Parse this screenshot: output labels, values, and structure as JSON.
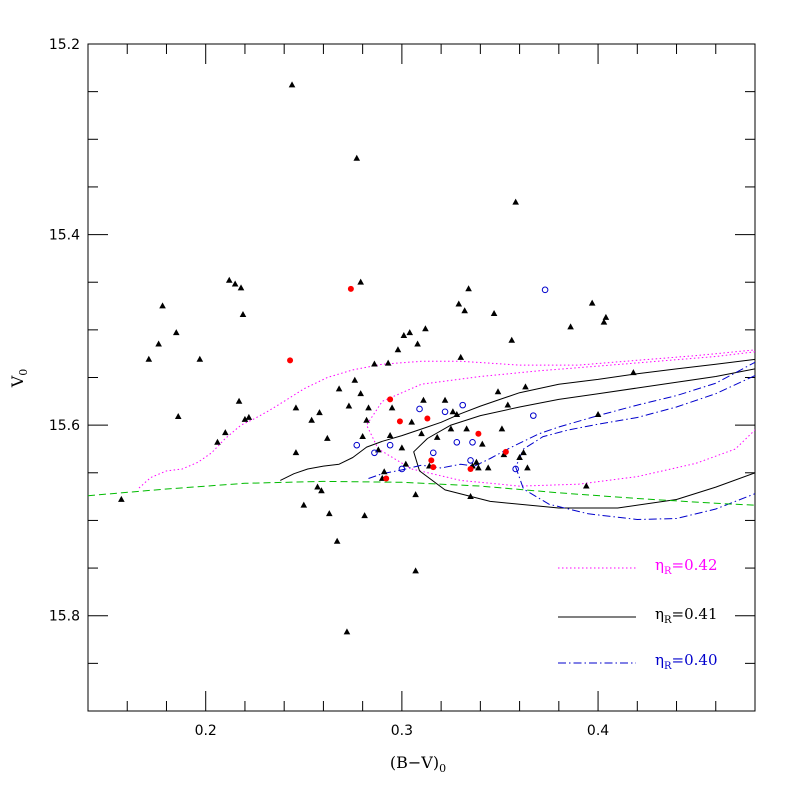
{
  "chart_data": {
    "type": "scatter",
    "title": "",
    "xlabel": "(B−V)",
    "xlabel_sub": "0",
    "ylabel": "V",
    "ylabel_sub": "0",
    "xlim": [
      0.14,
      0.48
    ],
    "ylim": [
      15.9,
      15.2
    ],
    "y_inverted": true,
    "grid": false,
    "x_ticks": [
      0.2,
      0.3,
      0.4
    ],
    "x_tick_labels": [
      "0.2",
      "0.3",
      "0.4"
    ],
    "y_ticks": [
      15.2,
      15.4,
      15.6,
      15.8
    ],
    "y_tick_labels": [
      "15.2",
      "15.4",
      "15.6",
      "15.8"
    ],
    "colors": {
      "frame": "#000000",
      "triangle": "#000000",
      "filled_circle": "#ff0000",
      "open_circle": "#0000cc",
      "tr042": "#ff00ff",
      "tr041": "#000000",
      "tr040": "#0000cc",
      "dashed": "#00bb00"
    },
    "triangles": [
      [
        0.157,
        15.678
      ],
      [
        0.171,
        15.531
      ],
      [
        0.176,
        15.515
      ],
      [
        0.178,
        15.475
      ],
      [
        0.185,
        15.503
      ],
      [
        0.186,
        15.591
      ],
      [
        0.197,
        15.531
      ],
      [
        0.206,
        15.618
      ],
      [
        0.21,
        15.608
      ],
      [
        0.212,
        15.448
      ],
      [
        0.215,
        15.452
      ],
      [
        0.217,
        15.575
      ],
      [
        0.218,
        15.456
      ],
      [
        0.219,
        15.484
      ],
      [
        0.22,
        15.594
      ],
      [
        0.222,
        15.592
      ],
      [
        0.244,
        15.243
      ],
      [
        0.246,
        15.629
      ],
      [
        0.246,
        15.582
      ],
      [
        0.25,
        15.684
      ],
      [
        0.254,
        15.595
      ],
      [
        0.257,
        15.665
      ],
      [
        0.258,
        15.587
      ],
      [
        0.259,
        15.669
      ],
      [
        0.262,
        15.614
      ],
      [
        0.263,
        15.693
      ],
      [
        0.267,
        15.722
      ],
      [
        0.268,
        15.562
      ],
      [
        0.272,
        15.817
      ],
      [
        0.273,
        15.58
      ],
      [
        0.276,
        15.553
      ],
      [
        0.277,
        15.32
      ],
      [
        0.279,
        15.45
      ],
      [
        0.279,
        15.567
      ],
      [
        0.28,
        15.612
      ],
      [
        0.281,
        15.695
      ],
      [
        0.282,
        15.595
      ],
      [
        0.283,
        15.582
      ],
      [
        0.286,
        15.536
      ],
      [
        0.288,
        15.626
      ],
      [
        0.29,
        15.656
      ],
      [
        0.291,
        15.649
      ],
      [
        0.293,
        15.535
      ],
      [
        0.294,
        15.611
      ],
      [
        0.295,
        15.582
      ],
      [
        0.298,
        15.521
      ],
      [
        0.3,
        15.624
      ],
      [
        0.301,
        15.506
      ],
      [
        0.302,
        15.641
      ],
      [
        0.304,
        15.503
      ],
      [
        0.305,
        15.597
      ],
      [
        0.307,
        15.673
      ],
      [
        0.307,
        15.753
      ],
      [
        0.308,
        15.515
      ],
      [
        0.31,
        15.609
      ],
      [
        0.311,
        15.574
      ],
      [
        0.312,
        15.499
      ],
      [
        0.314,
        15.643
      ],
      [
        0.318,
        15.613
      ],
      [
        0.322,
        15.574
      ],
      [
        0.325,
        15.604
      ],
      [
        0.326,
        15.586
      ],
      [
        0.328,
        15.589
      ],
      [
        0.329,
        15.473
      ],
      [
        0.33,
        15.529
      ],
      [
        0.332,
        15.48
      ],
      [
        0.333,
        15.604
      ],
      [
        0.334,
        15.457
      ],
      [
        0.335,
        15.675
      ],
      [
        0.336,
        15.643
      ],
      [
        0.338,
        15.639
      ],
      [
        0.339,
        15.645
      ],
      [
        0.341,
        15.62
      ],
      [
        0.344,
        15.645
      ],
      [
        0.347,
        15.483
      ],
      [
        0.349,
        15.565
      ],
      [
        0.351,
        15.604
      ],
      [
        0.352,
        15.631
      ],
      [
        0.354,
        15.579
      ],
      [
        0.356,
        15.511
      ],
      [
        0.358,
        15.366
      ],
      [
        0.36,
        15.634
      ],
      [
        0.362,
        15.629
      ],
      [
        0.363,
        15.56
      ],
      [
        0.364,
        15.645
      ],
      [
        0.386,
        15.497
      ],
      [
        0.394,
        15.664
      ],
      [
        0.397,
        15.472
      ],
      [
        0.4,
        15.589
      ],
      [
        0.403,
        15.492
      ],
      [
        0.404,
        15.487
      ],
      [
        0.418,
        15.545
      ]
    ],
    "filled_circles": [
      [
        0.243,
        15.532
      ],
      [
        0.274,
        15.457
      ],
      [
        0.292,
        15.656
      ],
      [
        0.294,
        15.573
      ],
      [
        0.299,
        15.596
      ],
      [
        0.313,
        15.593
      ],
      [
        0.315,
        15.637
      ],
      [
        0.316,
        15.644
      ],
      [
        0.335,
        15.646
      ],
      [
        0.339,
        15.609
      ],
      [
        0.353,
        15.628
      ]
    ],
    "open_circles": [
      [
        0.277,
        15.621
      ],
      [
        0.286,
        15.629
      ],
      [
        0.294,
        15.621
      ],
      [
        0.3,
        15.646
      ],
      [
        0.309,
        15.583
      ],
      [
        0.316,
        15.629
      ],
      [
        0.322,
        15.586
      ],
      [
        0.328,
        15.618
      ],
      [
        0.331,
        15.579
      ],
      [
        0.335,
        15.637
      ],
      [
        0.336,
        15.618
      ],
      [
        0.358,
        15.646
      ],
      [
        0.367,
        15.59
      ],
      [
        0.373,
        15.458
      ]
    ],
    "series": [
      {
        "name": "ηR=0.42",
        "style": "dotted",
        "points": [
          [
            0.166,
            15.666
          ],
          [
            0.172,
            15.655
          ],
          [
            0.18,
            15.648
          ],
          [
            0.188,
            15.646
          ],
          [
            0.196,
            15.639
          ],
          [
            0.203,
            15.629
          ],
          [
            0.21,
            15.614
          ],
          [
            0.218,
            15.6
          ],
          [
            0.225,
            15.593
          ],
          [
            0.232,
            15.585
          ],
          [
            0.24,
            15.575
          ],
          [
            0.25,
            15.562
          ],
          [
            0.262,
            15.55
          ],
          [
            0.275,
            15.542
          ],
          [
            0.29,
            15.536
          ],
          [
            0.31,
            15.533
          ],
          [
            0.33,
            15.533
          ],
          [
            0.36,
            15.537
          ],
          [
            0.39,
            15.537
          ],
          [
            0.42,
            15.532
          ],
          [
            0.45,
            15.527
          ],
          [
            0.48,
            15.521
          ]
        ]
      },
      {
        "name": "ηR=0.42-loop",
        "style": "dotted",
        "points": [
          [
            0.48,
            15.523
          ],
          [
            0.46,
            15.528
          ],
          [
            0.43,
            15.533
          ],
          [
            0.4,
            15.538
          ],
          [
            0.37,
            15.543
          ],
          [
            0.34,
            15.549
          ],
          [
            0.31,
            15.557
          ],
          [
            0.29,
            15.575
          ],
          [
            0.282,
            15.6
          ],
          [
            0.288,
            15.625
          ],
          [
            0.305,
            15.646
          ],
          [
            0.33,
            15.658
          ],
          [
            0.36,
            15.664
          ],
          [
            0.39,
            15.662
          ],
          [
            0.42,
            15.654
          ],
          [
            0.45,
            15.64
          ],
          [
            0.47,
            15.625
          ],
          [
            0.48,
            15.605
          ]
        ]
      },
      {
        "name": "ηR=0.41",
        "style": "solid",
        "points": [
          [
            0.238,
            15.658
          ],
          [
            0.245,
            15.651
          ],
          [
            0.252,
            15.646
          ],
          [
            0.26,
            15.643
          ],
          [
            0.268,
            15.641
          ],
          [
            0.275,
            15.634
          ],
          [
            0.282,
            15.623
          ],
          [
            0.29,
            15.617
          ],
          [
            0.3,
            15.611
          ],
          [
            0.31,
            15.604
          ],
          [
            0.32,
            15.597
          ],
          [
            0.33,
            15.588
          ],
          [
            0.34,
            15.58
          ],
          [
            0.35,
            15.573
          ],
          [
            0.36,
            15.566
          ],
          [
            0.38,
            15.557
          ],
          [
            0.4,
            15.552
          ],
          [
            0.42,
            15.546
          ],
          [
            0.44,
            15.541
          ],
          [
            0.46,
            15.536
          ],
          [
            0.48,
            15.531
          ]
        ]
      },
      {
        "name": "ηR=0.41-loop",
        "style": "solid",
        "points": [
          [
            0.48,
            15.541
          ],
          [
            0.46,
            15.549
          ],
          [
            0.44,
            15.555
          ],
          [
            0.42,
            15.561
          ],
          [
            0.4,
            15.567
          ],
          [
            0.38,
            15.573
          ],
          [
            0.36,
            15.581
          ],
          [
            0.34,
            15.59
          ],
          [
            0.325,
            15.6
          ],
          [
            0.313,
            15.614
          ],
          [
            0.306,
            15.628
          ],
          [
            0.309,
            15.648
          ],
          [
            0.322,
            15.668
          ],
          [
            0.345,
            15.68
          ],
          [
            0.38,
            15.687
          ],
          [
            0.41,
            15.687
          ],
          [
            0.44,
            15.678
          ],
          [
            0.46,
            15.665
          ],
          [
            0.48,
            15.65
          ]
        ]
      },
      {
        "name": "ηR=0.40",
        "style": "dashdot",
        "points": [
          [
            0.283,
            15.656
          ],
          [
            0.29,
            15.651
          ],
          [
            0.3,
            15.647
          ],
          [
            0.31,
            15.642
          ],
          [
            0.32,
            15.645
          ],
          [
            0.33,
            15.641
          ],
          [
            0.337,
            15.643
          ],
          [
            0.345,
            15.635
          ],
          [
            0.355,
            15.624
          ],
          [
            0.37,
            15.609
          ],
          [
            0.38,
            15.602
          ],
          [
            0.39,
            15.596
          ],
          [
            0.4,
            15.59
          ],
          [
            0.42,
            15.579
          ],
          [
            0.44,
            15.569
          ],
          [
            0.46,
            15.556
          ],
          [
            0.48,
            15.534
          ]
        ]
      },
      {
        "name": "ηR=0.40-loop",
        "style": "dashdot",
        "points": [
          [
            0.48,
            15.548
          ],
          [
            0.46,
            15.567
          ],
          [
            0.44,
            15.581
          ],
          [
            0.42,
            15.592
          ],
          [
            0.4,
            15.599
          ],
          [
            0.385,
            15.605
          ],
          [
            0.372,
            15.612
          ],
          [
            0.362,
            15.625
          ],
          [
            0.358,
            15.644
          ],
          [
            0.362,
            15.667
          ],
          [
            0.375,
            15.683
          ],
          [
            0.395,
            15.693
          ],
          [
            0.42,
            15.699
          ],
          [
            0.44,
            15.698
          ],
          [
            0.46,
            15.688
          ],
          [
            0.48,
            15.672
          ]
        ]
      },
      {
        "name": "dashed",
        "style": "dashed",
        "points": [
          [
            0.14,
            15.674
          ],
          [
            0.18,
            15.667
          ],
          [
            0.22,
            15.661
          ],
          [
            0.26,
            15.659
          ],
          [
            0.3,
            15.66
          ],
          [
            0.34,
            15.664
          ],
          [
            0.38,
            15.671
          ],
          [
            0.42,
            15.677
          ],
          [
            0.46,
            15.682
          ],
          [
            0.48,
            15.684
          ]
        ]
      }
    ],
    "legend": {
      "placement": "bottom-right",
      "entries": [
        {
          "label_main": "η",
          "label_sub": "R",
          "label_value": "=0.42",
          "style": "dotted",
          "color": "#ff00ff"
        },
        {
          "label_main": "η",
          "label_sub": "R",
          "label_value": "=0.41",
          "style": "solid",
          "color": "#000000"
        },
        {
          "label_main": "η",
          "label_sub": "R",
          "label_value": "=0.40",
          "style": "dashdot",
          "color": "#0000cc"
        }
      ]
    }
  }
}
